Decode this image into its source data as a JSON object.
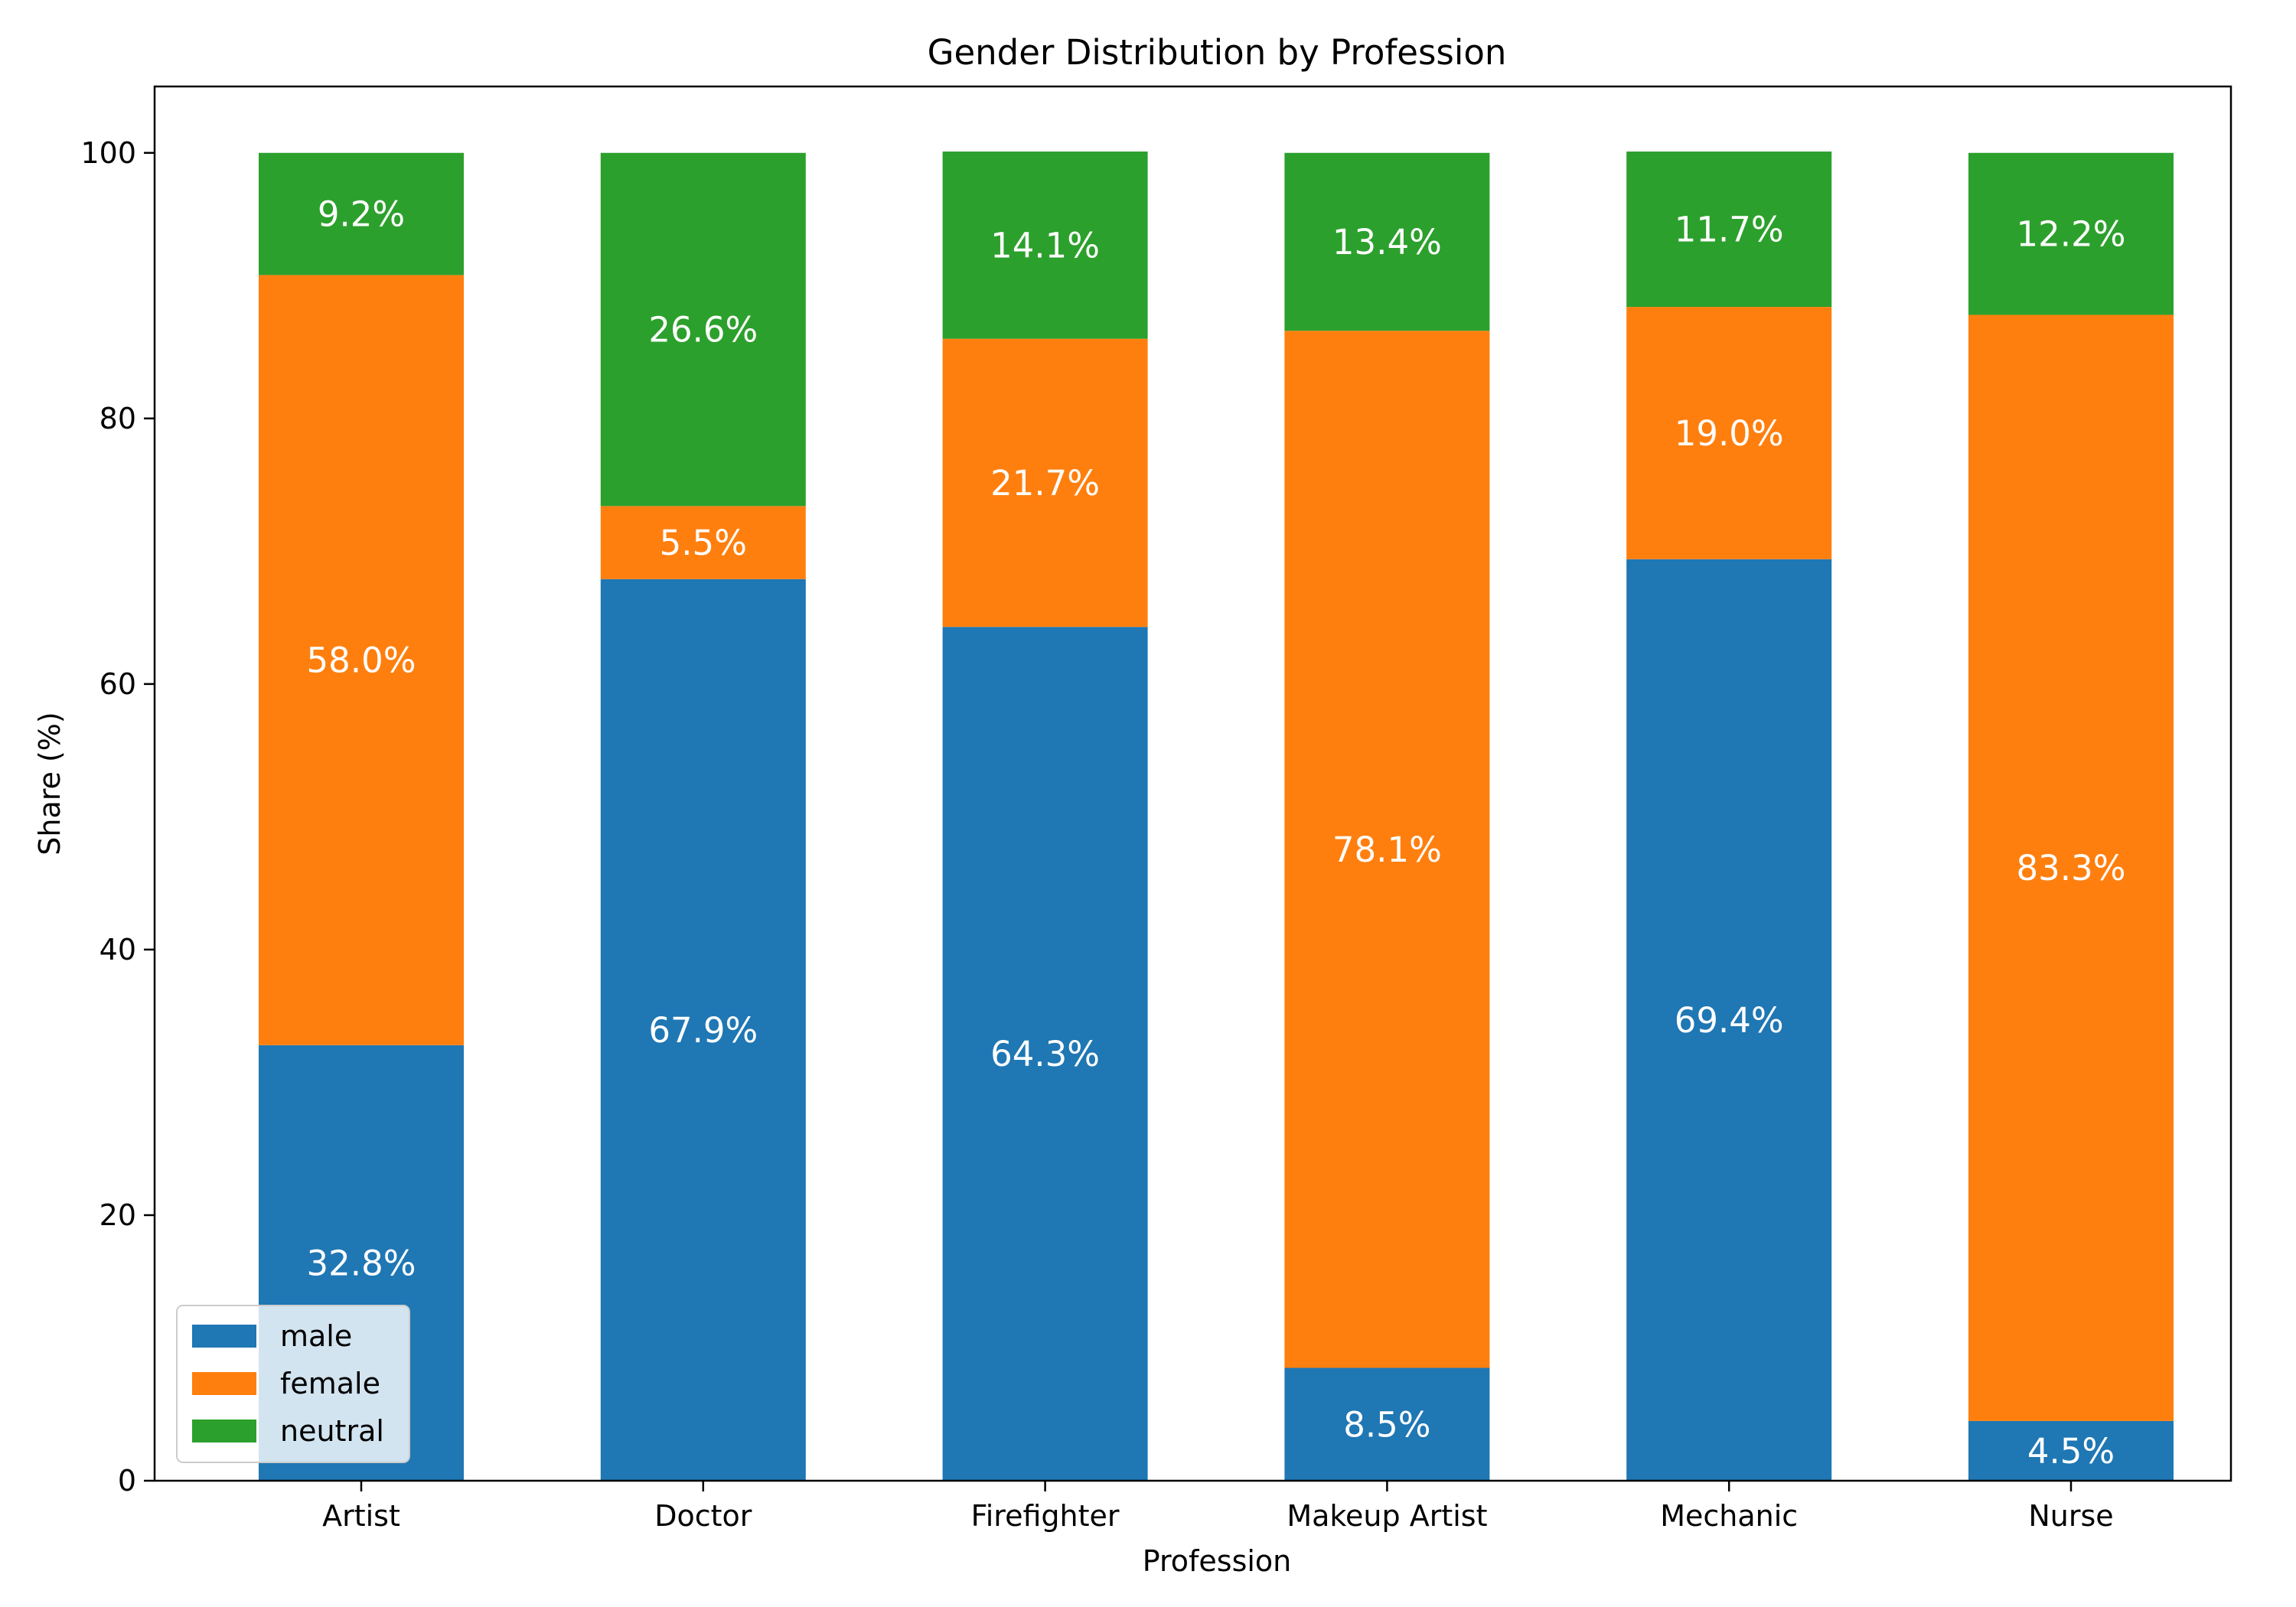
{
  "chart_data": {
    "type": "bar",
    "stacked": true,
    "title": "Gender Distribution by Profession",
    "xlabel": "Profession",
    "ylabel": "Share (%)",
    "ylim": [
      0,
      105
    ],
    "yticks": [
      0,
      20,
      40,
      60,
      80,
      100
    ],
    "categories": [
      "Artist",
      "Doctor",
      "Firefighter",
      "Makeup Artist",
      "Mechanic",
      "Nurse"
    ],
    "series": [
      {
        "name": "male",
        "color": "#1f77b4",
        "values": [
          32.8,
          67.9,
          64.3,
          8.5,
          69.4,
          4.5
        ],
        "labels": [
          "32.8%",
          "67.9%",
          "64.3%",
          "8.5%",
          "69.4%",
          "4.5%"
        ]
      },
      {
        "name": "female",
        "color": "#ff7f0e",
        "values": [
          58.0,
          5.5,
          21.7,
          78.1,
          19.0,
          83.3
        ],
        "labels": [
          "58.0%",
          "5.5%",
          "21.7%",
          "78.1%",
          "19.0%",
          "83.3%"
        ]
      },
      {
        "name": "neutral",
        "color": "#2ca02c",
        "values": [
          9.2,
          26.6,
          14.1,
          13.4,
          11.7,
          12.2
        ],
        "labels": [
          "9.2%",
          "26.6%",
          "14.1%",
          "13.4%",
          "11.7%",
          "12.2%"
        ]
      }
    ],
    "legend": {
      "position": "lower-left"
    },
    "grid": false
  }
}
